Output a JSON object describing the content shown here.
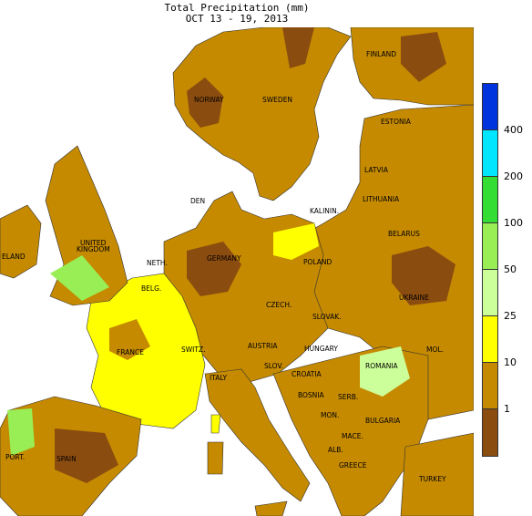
{
  "header": {
    "title": "Total Precipitation (mm)",
    "subtitle": "OCT 13 - 19, 2013"
  },
  "legend": {
    "bins": [
      {
        "color": "#0033dd"
      },
      {
        "color": "#00e6ff"
      },
      {
        "color": "#33dd33"
      },
      {
        "color": "#99ee55"
      },
      {
        "color": "#ccff99"
      },
      {
        "color": "#ffff00"
      },
      {
        "color": "#c58a00"
      },
      {
        "color": "#8b4c10"
      }
    ],
    "labels": [
      "400",
      "200",
      "100",
      "50",
      "25",
      "10",
      "1"
    ]
  },
  "map": {
    "colors": {
      "sea": "#ffffff",
      "dry": "#8b4c10",
      "low": "#c58a00",
      "moderate": "#ffff00",
      "wet": "#ccff99",
      "wetter": "#99ee55",
      "wettest": "#33dd33"
    },
    "countries": {
      "finland": "FINLAND",
      "norway": "NORWAY",
      "sweden": "SWEDEN",
      "estonia": "ESTONIA",
      "latvia": "LATVIA",
      "lithuania": "LITHUANIA",
      "kalinin": "KALININ.",
      "belarus": "BELARUS",
      "denmark": "DEN",
      "united_kingdom_1": "UNITED",
      "united_kingdom_2": "KINGDOM",
      "ireland": "ELAND",
      "netherlands": "NETH.",
      "germany": "GERMANY",
      "poland": "POLAND",
      "belgium": "BELG.",
      "czech": "CZECH.",
      "slovakia": "SLOVAK.",
      "ukraine": "UKRAINE",
      "moldova": "MOL.",
      "france": "FRANCE",
      "switzerland": "SWITZ.",
      "austria": "AUSTRIA",
      "hungary": "HUNGARY",
      "romania": "ROMANIA",
      "slovenia": "SLOV.",
      "croatia": "CROATIA",
      "italy": "ITALY",
      "bosnia": "BOSNIA",
      "serbia": "SERB.",
      "montenegro": "MON.",
      "bulgaria": "BULGARIA",
      "macedonia": "MACE.",
      "albania": "ALB.",
      "greece": "GREECE",
      "turkey": "TURKEY",
      "portugal": "PORT.",
      "spain": "SPAIN"
    }
  }
}
